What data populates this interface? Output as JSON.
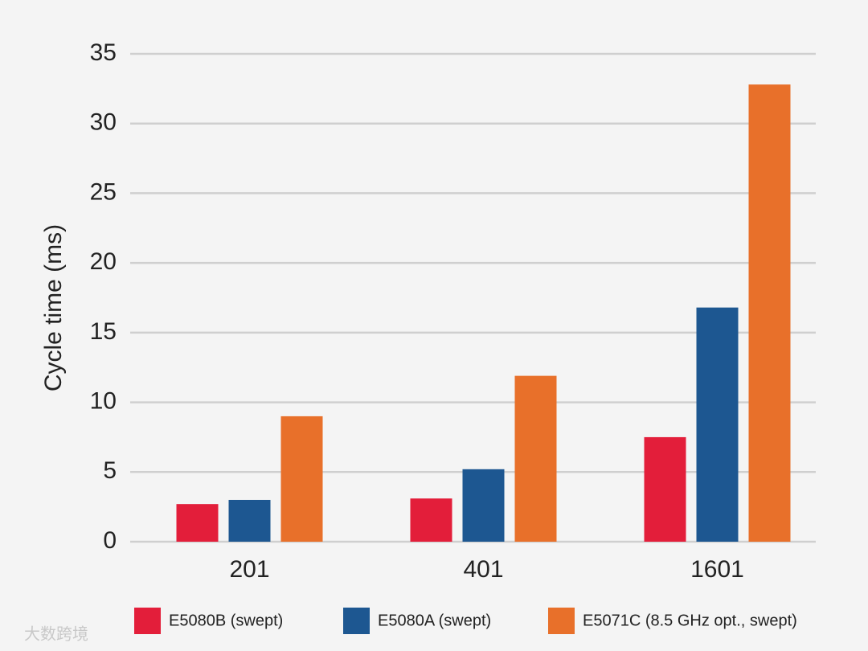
{
  "chart_data": {
    "type": "bar",
    "y_label": "Cycle time (ms)",
    "categories": [
      "201",
      "401",
      "1601"
    ],
    "series": [
      {
        "name": "E5080B (swept)",
        "color": "#e31e3a",
        "values": [
          2.7,
          3.1,
          7.5
        ]
      },
      {
        "name": "E5080A (swept)",
        "color": "#1d5791",
        "values": [
          3.0,
          5.2,
          16.8
        ]
      },
      {
        "name": "E5071C (8.5 GHz opt., swept)",
        "color": "#e8702a",
        "values": [
          9.0,
          11.9,
          32.8
        ]
      }
    ],
    "ylim": [
      0,
      35
    ],
    "yticks": [
      0,
      5,
      10,
      15,
      20,
      25,
      30,
      35
    ],
    "grid": true,
    "legend": "bottom"
  },
  "watermark": "大数跨境"
}
